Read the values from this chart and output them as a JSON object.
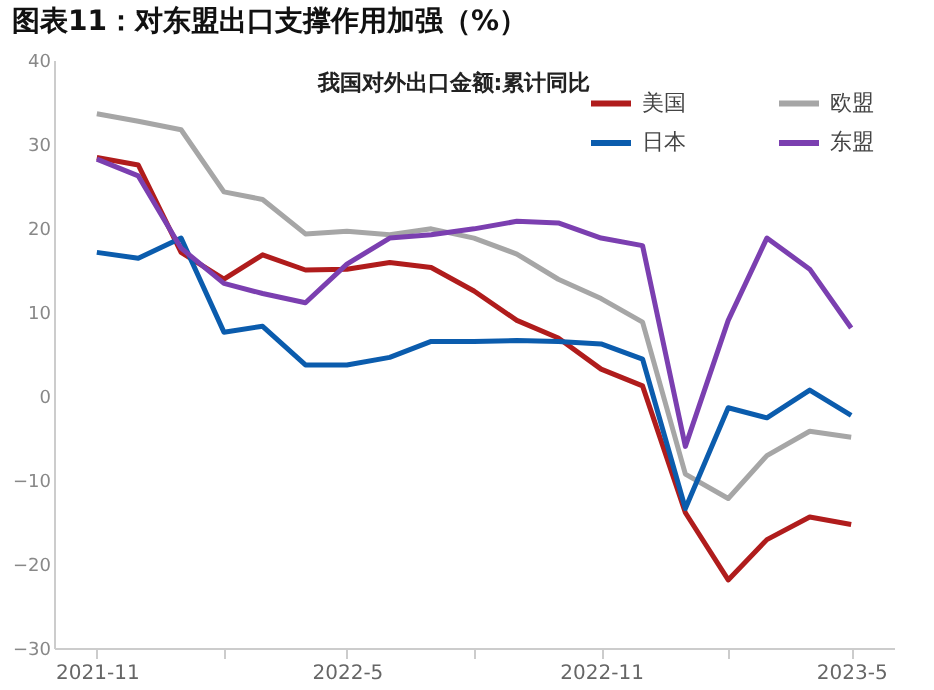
{
  "chart_data": {
    "type": "line",
    "title": "图表11：对东盟出口支撑作用加强（%）",
    "subtitle": "我国对外出口金额:累计同比",
    "x": [
      "2021-11",
      "2021-12",
      "2022-01",
      "2022-02",
      "2022-03",
      "2022-04",
      "2022-05",
      "2022-06",
      "2022-07",
      "2022-08",
      "2022-09",
      "2022-10",
      "2022-11",
      "2022-12",
      "2023-01",
      "2023-02",
      "2023-03",
      "2023-04",
      "2023-05"
    ],
    "series": [
      {
        "name": "美国",
        "color": "#b01c1c",
        "values": [
          28.4,
          27.5,
          17.1,
          13.9,
          16.8,
          15.0,
          15.1,
          15.9,
          15.3,
          12.5,
          9.0,
          6.9,
          3.2,
          1.2,
          -13.9,
          -21.9,
          -17.1,
          -14.4,
          -15.3
        ]
      },
      {
        "name": "欧盟",
        "color": "#a6a6a6",
        "values": [
          33.6,
          32.7,
          31.7,
          24.3,
          23.4,
          19.3,
          19.6,
          19.2,
          19.9,
          18.8,
          16.9,
          13.9,
          11.6,
          8.8,
          -9.3,
          -12.2,
          -7.1,
          -4.2,
          -4.9
        ]
      },
      {
        "name": "日本",
        "color": "#0b5cad",
        "values": [
          17.1,
          16.4,
          18.8,
          7.6,
          8.3,
          3.7,
          3.7,
          4.6,
          6.5,
          6.5,
          6.6,
          6.5,
          6.2,
          4.4,
          -13.4,
          -1.4,
          -2.6,
          0.7,
          -2.3
        ]
      },
      {
        "name": "东盟",
        "color": "#7b3fb0",
        "values": [
          28.2,
          26.2,
          17.6,
          13.4,
          12.2,
          11.1,
          15.7,
          18.8,
          19.2,
          19.9,
          20.8,
          20.6,
          18.8,
          17.9,
          -6.0,
          9.0,
          18.8,
          15.1,
          8.1
        ]
      }
    ],
    "xlim": [
      "2021-10",
      "2023-06"
    ],
    "xticks": [
      {
        "value": "2021-11",
        "label": "2021-11"
      },
      {
        "value": "2022-02",
        "label": null
      },
      {
        "value": "2022-05",
        "label": "2022-5"
      },
      {
        "value": "2022-08",
        "label": null
      },
      {
        "value": "2022-11",
        "label": "2022-11"
      },
      {
        "value": "2023-02",
        "label": null
      },
      {
        "value": "2023-05",
        "label": "2023-5"
      }
    ],
    "ylim": [
      -30,
      40
    ],
    "yticks": [
      -30,
      -20,
      -10,
      0,
      10,
      20,
      30,
      40
    ],
    "grid": false,
    "legend": "top right",
    "marker": "none",
    "line_style": "solid"
  }
}
